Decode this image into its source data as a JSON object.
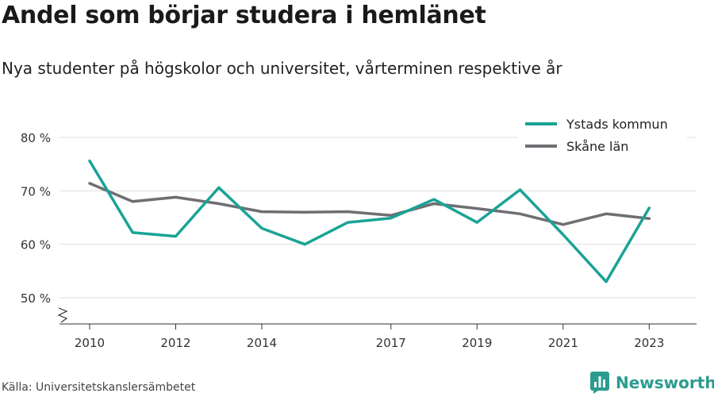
{
  "header": {
    "title": "Andel som börjar studera i hemlänet",
    "subtitle": "Nya studenter på högskolor och universitet, vårterminen respektive år"
  },
  "footer": {
    "source": "Källa: Universitetskanslersämbetet",
    "brand": "Newsworthy"
  },
  "colors": {
    "ystad": "#1aa396",
    "skane": "#6e6e73",
    "grid": "#dedede",
    "brand": "#2b9c8f"
  },
  "chart_data": {
    "type": "line",
    "x": [
      2010,
      2011,
      2012,
      2013,
      2014,
      2015,
      2016,
      2017,
      2018,
      2019,
      2020,
      2021,
      2022,
      2023
    ],
    "x_tick_labels": [
      "2010",
      "2012",
      "2014",
      "2017",
      "2019",
      "2021",
      "2023"
    ],
    "y_tick_labels": [
      "80 %",
      "70 %",
      "60 %",
      "50 %"
    ],
    "y_ticks": [
      80,
      70,
      60,
      50
    ],
    "ylim": [
      45,
      80
    ],
    "axis_break": true,
    "grid": true,
    "legend_position": "top-right",
    "series": [
      {
        "name": "Ystads kommun",
        "values": [
          75.6,
          62.2,
          61.5,
          70.6,
          63.0,
          60.0,
          64.1,
          64.9,
          68.4,
          64.1,
          70.2,
          61.8,
          53.0,
          66.8
        ]
      },
      {
        "name": "Skåne län",
        "values": [
          71.4,
          68.0,
          68.8,
          67.6,
          66.1,
          66.0,
          66.1,
          65.4,
          67.6,
          66.7,
          65.7,
          63.7,
          65.7,
          64.8
        ]
      }
    ]
  }
}
